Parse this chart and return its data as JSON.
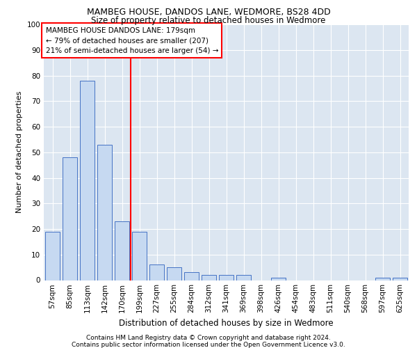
{
  "title1": "MAMBEG HOUSE, DANDOS LANE, WEDMORE, BS28 4DD",
  "title2": "Size of property relative to detached houses in Wedmore",
  "xlabel": "Distribution of detached houses by size in Wedmore",
  "ylabel": "Number of detached properties",
  "categories": [
    "57sqm",
    "85sqm",
    "113sqm",
    "142sqm",
    "170sqm",
    "199sqm",
    "227sqm",
    "255sqm",
    "284sqm",
    "312sqm",
    "341sqm",
    "369sqm",
    "398sqm",
    "426sqm",
    "454sqm",
    "483sqm",
    "511sqm",
    "540sqm",
    "568sqm",
    "597sqm",
    "625sqm"
  ],
  "values": [
    19,
    48,
    78,
    53,
    23,
    19,
    6,
    5,
    3,
    2,
    2,
    2,
    0,
    1,
    0,
    0,
    0,
    0,
    0,
    1,
    1
  ],
  "bar_color": "#c6d9f1",
  "bar_edge_color": "#4472c4",
  "vline_x": 4.5,
  "vline_color": "red",
  "annotation_lines": [
    "MAMBEG HOUSE DANDOS LANE: 179sqm",
    "← 79% of detached houses are smaller (207)",
    "21% of semi-detached houses are larger (54) →"
  ],
  "ylim": [
    0,
    100
  ],
  "yticks": [
    0,
    10,
    20,
    30,
    40,
    50,
    60,
    70,
    80,
    90,
    100
  ],
  "footer1": "Contains HM Land Registry data © Crown copyright and database right 2024.",
  "footer2": "Contains public sector information licensed under the Open Government Licence v3.0.",
  "background_color": "#dce6f1",
  "title1_fontsize": 9,
  "title2_fontsize": 8.5,
  "ylabel_fontsize": 8,
  "xlabel_fontsize": 8.5,
  "tick_fontsize": 7.5,
  "footer_fontsize": 6.5,
  "ann_fontsize": 7.5
}
